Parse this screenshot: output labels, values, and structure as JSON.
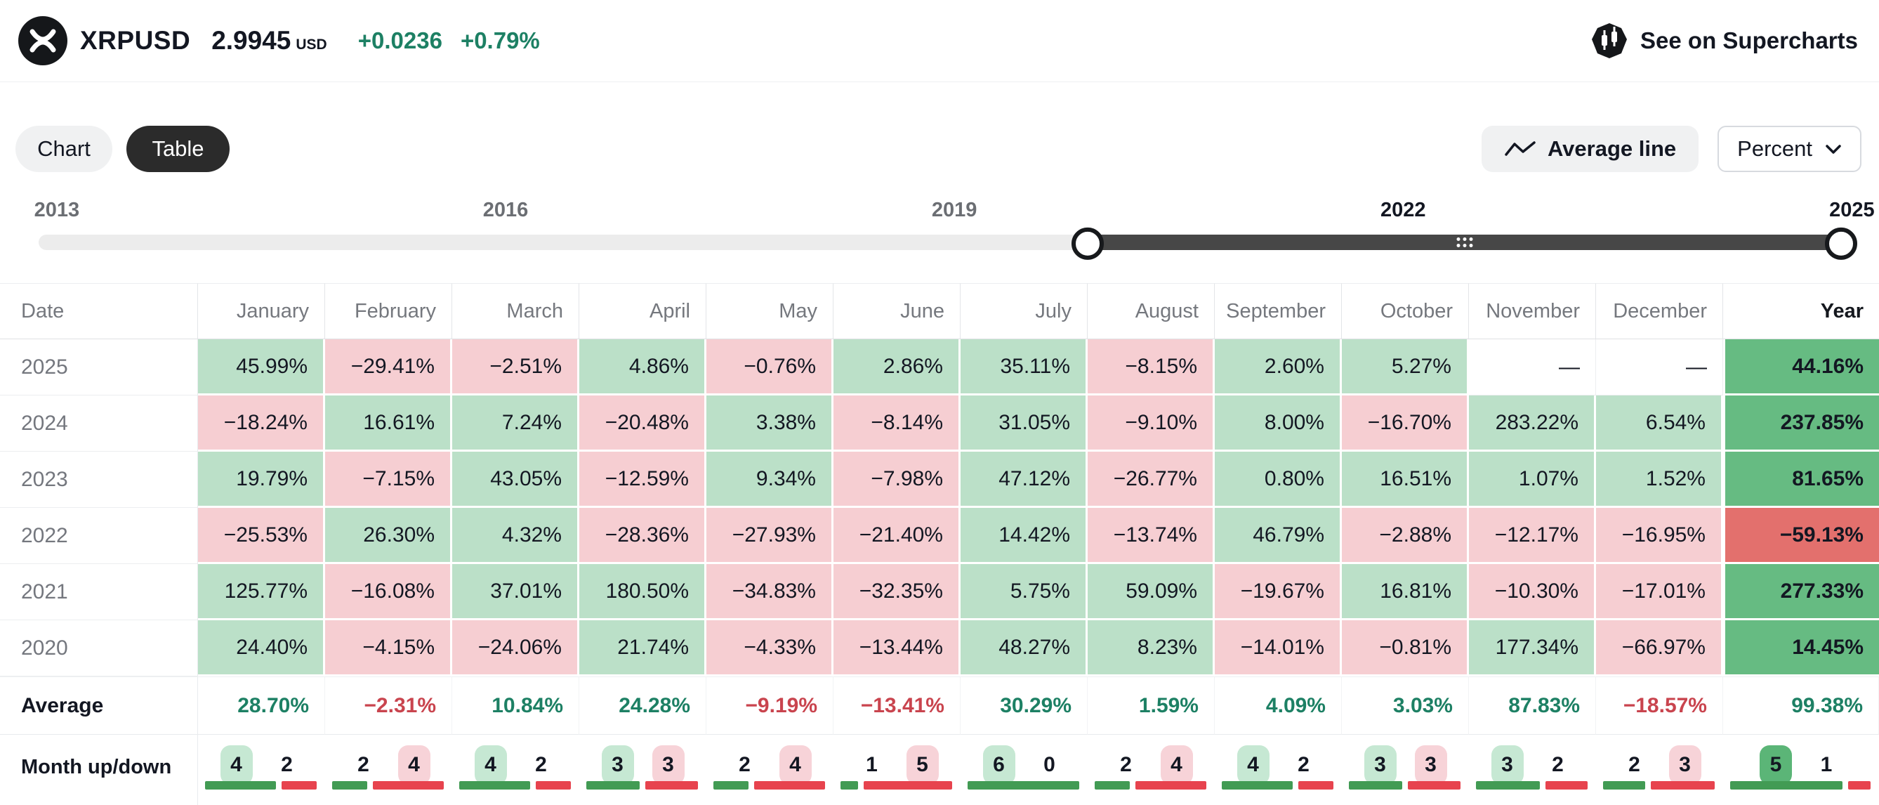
{
  "header": {
    "symbol": "XRPUSD",
    "price": "2.9945",
    "currency": "USD",
    "change_abs": "+0.0236",
    "change_pct": "+0.79%",
    "supercharts_label": "See on Supercharts"
  },
  "toolbar": {
    "chart_label": "Chart",
    "table_label": "Table",
    "average_line_label": "Average line",
    "percent_label": "Percent"
  },
  "slider": {
    "ticks": [
      {
        "label": "2013",
        "active": false
      },
      {
        "label": "2016",
        "active": false
      },
      {
        "label": "2019",
        "active": false
      },
      {
        "label": "2022",
        "active": true
      },
      {
        "label": "2025",
        "active": true
      }
    ],
    "range_start_pct": 57.8,
    "range_end_pct": 99.3
  },
  "table": {
    "columns": [
      "Date",
      "January",
      "February",
      "March",
      "April",
      "May",
      "June",
      "July",
      "August",
      "September",
      "October",
      "November",
      "December",
      "Year"
    ],
    "year_rows": [
      {
        "label": "2025",
        "values": [
          "45.99%",
          "−29.41%",
          "−2.51%",
          "4.86%",
          "−0.76%",
          "2.86%",
          "35.11%",
          "−8.15%",
          "2.60%",
          "5.27%",
          "—",
          "—",
          "44.16%"
        ]
      },
      {
        "label": "2024",
        "values": [
          "−18.24%",
          "16.61%",
          "7.24%",
          "−20.48%",
          "3.38%",
          "−8.14%",
          "31.05%",
          "−9.10%",
          "8.00%",
          "−16.70%",
          "283.22%",
          "6.54%",
          "237.85%"
        ]
      },
      {
        "label": "2023",
        "values": [
          "19.79%",
          "−7.15%",
          "43.05%",
          "−12.59%",
          "9.34%",
          "−7.98%",
          "47.12%",
          "−26.77%",
          "0.80%",
          "16.51%",
          "1.07%",
          "1.52%",
          "81.65%"
        ]
      },
      {
        "label": "2022",
        "values": [
          "−25.53%",
          "26.30%",
          "4.32%",
          "−28.36%",
          "−27.93%",
          "−21.40%",
          "14.42%",
          "−13.74%",
          "46.79%",
          "−2.88%",
          "−12.17%",
          "−16.95%",
          "−59.13%"
        ]
      },
      {
        "label": "2021",
        "values": [
          "125.77%",
          "−16.08%",
          "37.01%",
          "180.50%",
          "−34.83%",
          "−32.35%",
          "5.75%",
          "59.09%",
          "−19.67%",
          "16.81%",
          "−10.30%",
          "−17.01%",
          "277.33%"
        ]
      },
      {
        "label": "2020",
        "values": [
          "24.40%",
          "−4.15%",
          "−24.06%",
          "21.74%",
          "−4.33%",
          "−13.44%",
          "48.27%",
          "8.23%",
          "−14.01%",
          "−0.81%",
          "177.34%",
          "−66.97%",
          "14.45%"
        ]
      }
    ],
    "average_row": {
      "label": "Average",
      "values": [
        "28.70%",
        "−2.31%",
        "10.84%",
        "24.28%",
        "−9.19%",
        "−13.41%",
        "30.29%",
        "1.59%",
        "4.09%",
        "3.03%",
        "87.83%",
        "−18.57%",
        "99.38%"
      ]
    },
    "updown_row": {
      "label": "Month up/down",
      "pairs": [
        {
          "up": 4,
          "down": 2
        },
        {
          "up": 2,
          "down": 4
        },
        {
          "up": 4,
          "down": 2
        },
        {
          "up": 3,
          "down": 3
        },
        {
          "up": 2,
          "down": 4
        },
        {
          "up": 1,
          "down": 5
        },
        {
          "up": 6,
          "down": 0
        },
        {
          "up": 2,
          "down": 4
        },
        {
          "up": 4,
          "down": 2
        },
        {
          "up": 3,
          "down": 3
        },
        {
          "up": 3,
          "down": 2
        },
        {
          "up": 2,
          "down": 3
        },
        {
          "up": 5,
          "down": 1
        }
      ]
    }
  },
  "colors": {
    "change_text": "#1d8064",
    "positive_bg": "#bbe0c8",
    "negative_bg": "#f6ced2",
    "year_positive_bg": "#66bb82",
    "year_negative_bg": "#e3706d",
    "average_positive_text": "#1d8064",
    "average_negative_text": "#c9444e",
    "bar_up": "#429b54",
    "bar_down": "#e7434e",
    "slider_range": "#474747",
    "active_pill_bg": "#2b2b2b"
  }
}
